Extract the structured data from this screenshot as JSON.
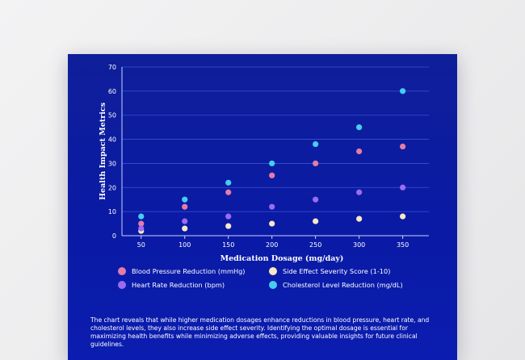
{
  "chart_data": {
    "type": "scatter",
    "xlabel": "Medication Dosage (mg/day)",
    "ylabel": "Health Impact Metrics",
    "x": [
      50,
      100,
      150,
      200,
      250,
      300,
      350
    ],
    "xticks": [
      50,
      100,
      150,
      200,
      250,
      300,
      350
    ],
    "xlim": [
      28,
      380
    ],
    "ylim": [
      0,
      70
    ],
    "yticks": [
      0,
      10,
      20,
      30,
      40,
      50,
      60,
      70
    ],
    "grid": "horizontal",
    "legend_position": "bottom",
    "series": [
      {
        "name": "Blood Pressure Reduction (mmHg)",
        "color": "#e57ba6",
        "values": [
          5,
          12,
          18,
          25,
          30,
          35,
          37
        ]
      },
      {
        "name": "Side Effect Severity Score (1-10)",
        "color": "#f7e9c1",
        "values": [
          2,
          3,
          4,
          5,
          6,
          7,
          8
        ]
      },
      {
        "name": "Heart Rate Reduction (bpm)",
        "color": "#9b6bf0",
        "values": [
          3,
          6,
          8,
          12,
          15,
          18,
          20
        ]
      },
      {
        "name": "Cholesterol Level Reduction (mg/dL)",
        "color": "#46cdf2",
        "values": [
          8,
          15,
          22,
          30,
          38,
          45,
          60
        ]
      }
    ]
  },
  "caption": "The chart reveals that while higher medication dosages enhance reductions in blood pressure, heart rate, and cholesterol levels, they also increase side effect severity. Identifying the optimal dosage is essential for maximizing health benefits while minimizing adverse effects, providing valuable insights for future clinical guidelines."
}
